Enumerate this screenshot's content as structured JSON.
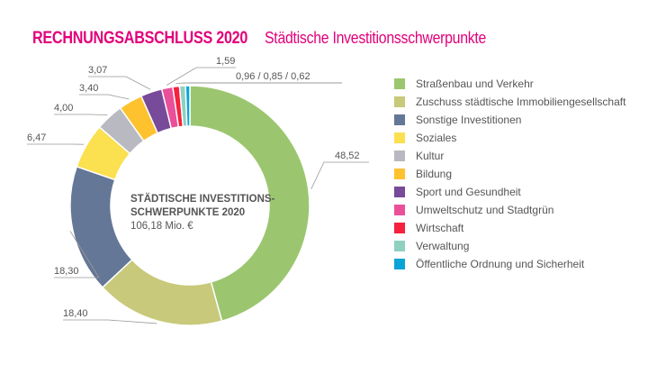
{
  "title": {
    "main": "RECHNUNGSABSCHLUSS 2020",
    "sub": "Städtische Investitionsschwerpunkte"
  },
  "chart_data": {
    "type": "pie",
    "donut": true,
    "center_label": {
      "line1": "STÄDTISCHE INVESTITIONS-",
      "line2": "SCHWERPUNKTE 2020",
      "total": "106,18 Mio. €"
    },
    "legend_position": "right",
    "slices": [
      {
        "name": "Straßenbau und Verkehr",
        "value": 48.52,
        "label": "48,52",
        "color": "#9bc66f"
      },
      {
        "name": "Zuschuss städtische Immobiliengesellschaft",
        "value": 18.4,
        "label": "18,40",
        "color": "#c8c97a"
      },
      {
        "name": "Sonstige Investitionen",
        "value": 18.3,
        "label": "18,30",
        "color": "#647796"
      },
      {
        "name": "Soziales",
        "value": 6.47,
        "label": "6,47",
        "color": "#fbe04f"
      },
      {
        "name": "Kultur",
        "value": 4.0,
        "label": "4,00",
        "color": "#b9b9c2"
      },
      {
        "name": "Bildung",
        "value": 3.4,
        "label": "3,40",
        "color": "#fec22f"
      },
      {
        "name": "Sport und Gesundheit",
        "value": 3.07,
        "label": "3,07",
        "color": "#784a9a"
      },
      {
        "name": "Umweltschutz und Stadtgrün",
        "value": 1.59,
        "label": "1,59",
        "color": "#ea4f9a"
      },
      {
        "name": "Wirtschaft",
        "value": 0.96,
        "color": "#f5213e"
      },
      {
        "name": "Verwaltung",
        "value": 0.85,
        "color": "#8fd0c0"
      },
      {
        "name": "Öffentliche Ordnung und Sicherheit",
        "value": 0.62,
        "color": "#0aa5d6"
      }
    ],
    "combined_label": "0,96 / 0,85 / 0,62"
  }
}
